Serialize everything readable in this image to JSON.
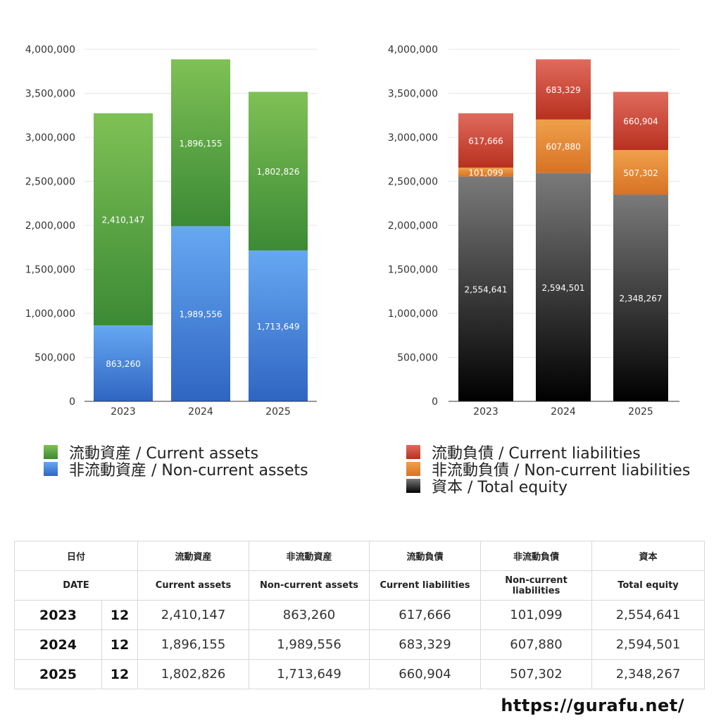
{
  "chart_data": [
    {
      "type": "bar",
      "stacked": true,
      "categories": [
        "2023",
        "2024",
        "2025"
      ],
      "ylim": [
        0,
        4000000
      ],
      "yticks": [
        0,
        500000,
        1000000,
        1500000,
        2000000,
        2500000,
        3000000,
        3500000,
        4000000
      ],
      "ytick_labels": [
        "0",
        "500,000",
        "1,000,000",
        "1,500,000",
        "2,000,000",
        "2,500,000",
        "3,000,000",
        "3,500,000",
        "4,000,000"
      ],
      "grid": true,
      "legend_position": "bottom",
      "series": [
        {
          "name": "非流動資産 / Non-current assets",
          "values": [
            863260,
            1989556,
            1713649
          ],
          "labels": [
            "863,260",
            "1,989,556",
            "1,713,649"
          ],
          "color": "#3f7fd6"
        },
        {
          "name": "流動資産 / Current assets",
          "values": [
            2410147,
            1896155,
            1802826
          ],
          "labels": [
            "2,410,147",
            "1,896,155",
            "1,802,826"
          ],
          "color": "#5aa544"
        }
      ]
    },
    {
      "type": "bar",
      "stacked": true,
      "categories": [
        "2023",
        "2024",
        "2025"
      ],
      "ylim": [
        0,
        4000000
      ],
      "yticks": [
        0,
        500000,
        1000000,
        1500000,
        2000000,
        2500000,
        3000000,
        3500000,
        4000000
      ],
      "ytick_labels": [
        "0",
        "500,000",
        "1,000,000",
        "1,500,000",
        "2,000,000",
        "2,500,000",
        "3,000,000",
        "3,500,000",
        "4,000,000"
      ],
      "grid": true,
      "legend_position": "bottom",
      "series": [
        {
          "name": "資本 / Total equity",
          "values": [
            2554641,
            2594501,
            2348267
          ],
          "labels": [
            "2,554,641",
            "2,594,501",
            "2,348,267"
          ],
          "color": "#444444"
        },
        {
          "name": "非流動負債 / Non-current liabilities",
          "values": [
            101099,
            607880,
            507302
          ],
          "labels": [
            "101,099",
            "607,880",
            "507,302"
          ],
          "color": "#e5852f"
        },
        {
          "name": "流動負債 / Current liabilities",
          "values": [
            617666,
            683329,
            660904
          ],
          "labels": [
            "617,666",
            "683,329",
            "660,904"
          ],
          "color": "#cf4535"
        }
      ]
    }
  ],
  "legends": {
    "left": [
      {
        "label": "流動資産 / Current assets",
        "color": "#5aa544"
      },
      {
        "label": "非流動資産 / Non-current assets",
        "color": "#3f7fd6"
      }
    ],
    "right": [
      {
        "label": "流動負債 / Current liabilities",
        "color": "#cf4535"
      },
      {
        "label": "非流動負債 / Non-current liabilities",
        "color": "#e5852f"
      },
      {
        "label": "資本 / Total equity",
        "color": "#333333"
      }
    ]
  },
  "table": {
    "header_jp": {
      "date": "日付",
      "current_assets": "流動資産",
      "noncurrent_assets": "非流動資産",
      "current_liabilities": "流動負債",
      "noncurrent_liabilities": "非流動負債",
      "equity": "資本"
    },
    "header_en": {
      "date": "DATE",
      "current_assets": "Current assets",
      "noncurrent_assets": "Non-current assets",
      "current_liabilities": "Current liabilities",
      "noncurrent_liabilities": "Non-current liabilities",
      "equity": "Total equity"
    },
    "rows": [
      {
        "year": "2023",
        "month": "12",
        "current_assets": "2,410,147",
        "noncurrent_assets": "863,260",
        "current_liabilities": "617,666",
        "noncurrent_liabilities": "101,099",
        "equity": "2,554,641"
      },
      {
        "year": "2024",
        "month": "12",
        "current_assets": "1,896,155",
        "noncurrent_assets": "1,989,556",
        "current_liabilities": "683,329",
        "noncurrent_liabilities": "607,880",
        "equity": "2,594,501"
      },
      {
        "year": "2025",
        "month": "12",
        "current_assets": "1,802,826",
        "noncurrent_assets": "1,713,649",
        "current_liabilities": "660,904",
        "noncurrent_liabilities": "507,302",
        "equity": "2,348,267"
      }
    ]
  },
  "site": "https://gurafu.net/"
}
